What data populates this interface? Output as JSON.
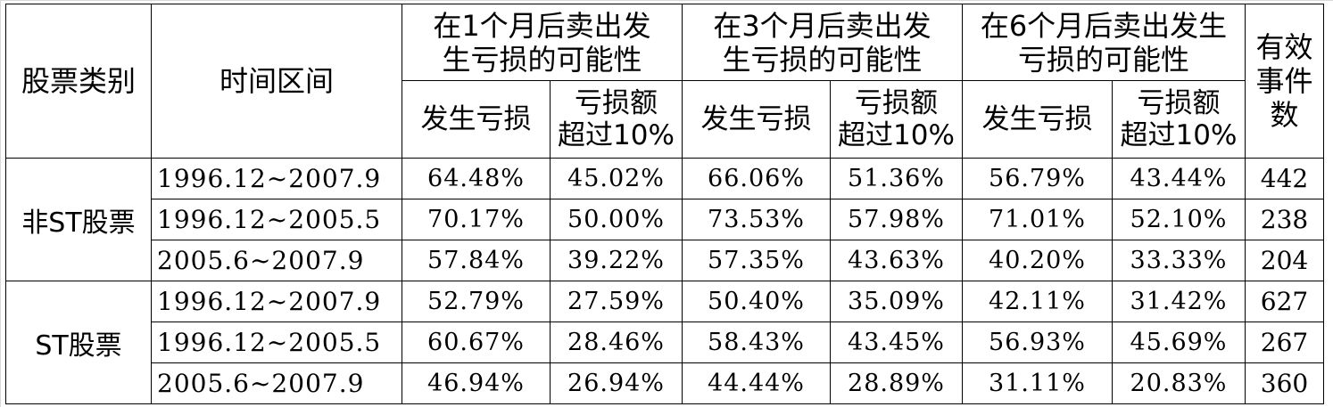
{
  "table": {
    "headers": {
      "category": "股票类别",
      "period": "时间区间",
      "group_1m_line1": "在1个月后卖出发",
      "group_1m_line2": "生亏损的可能性",
      "group_3m_line1": "在3个月后卖出发",
      "group_3m_line2": "生亏损的可能性",
      "group_6m_line1": "在6个月后卖出发生",
      "group_6m_line2": "亏损的可能性",
      "events_line1": "有效",
      "events_line2": "事件",
      "events_line3": "数",
      "loss": "发生亏损",
      "loss_over_line1": "亏损额",
      "loss_over_line2": "超过10%"
    },
    "groups": [
      {
        "category": "非ST股票",
        "rows": [
          {
            "period": "1996.12~2007.9",
            "v": [
              "64.48%",
              "45.02%",
              "66.06%",
              "51.36%",
              "56.79%",
              "43.44%"
            ],
            "count": "442"
          },
          {
            "period": "1996.12~2005.5",
            "v": [
              "70.17%",
              "50.00%",
              "73.53%",
              "57.98%",
              "71.01%",
              "52.10%"
            ],
            "count": "238"
          },
          {
            "period": "2005.6~2007.9",
            "v": [
              "57.84%",
              "39.22%",
              "57.35%",
              "43.63%",
              "40.20%",
              "33.33%"
            ],
            "count": "204"
          }
        ]
      },
      {
        "category": "ST股票",
        "rows": [
          {
            "period": "1996.12~2007.9",
            "v": [
              "52.79%",
              "27.59%",
              "50.40%",
              "35.09%",
              "42.11%",
              "31.42%"
            ],
            "count": "627"
          },
          {
            "period": "1996.12~2005.5",
            "v": [
              "60.67%",
              "28.46%",
              "58.43%",
              "43.45%",
              "56.93%",
              "45.69%"
            ],
            "count": "267"
          },
          {
            "period": "2005.6~2007.9",
            "v": [
              "46.94%",
              "26.94%",
              "44.44%",
              "28.89%",
              "31.11%",
              "20.83%"
            ],
            "count": "360"
          }
        ]
      }
    ]
  }
}
